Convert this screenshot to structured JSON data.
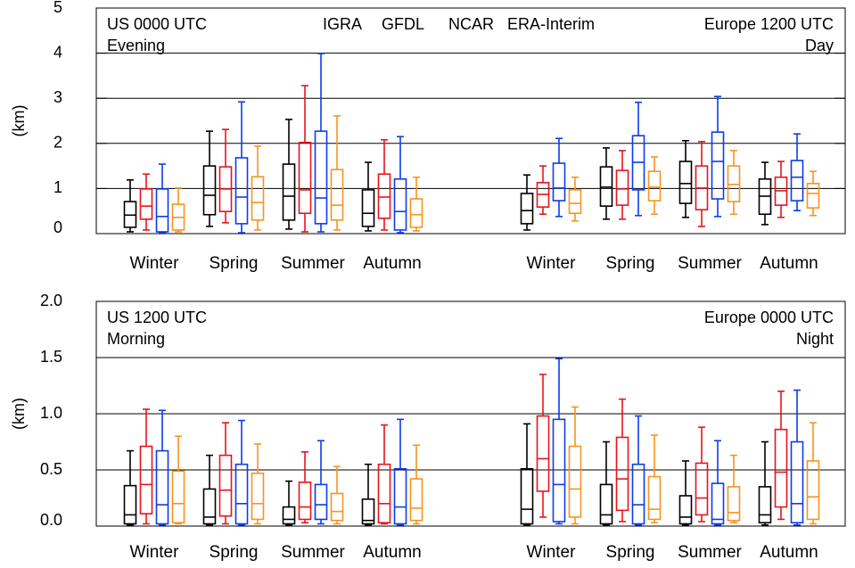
{
  "chart_data": [
    {
      "type": "box",
      "ylabel": "(km)",
      "ylim": [
        0,
        5
      ],
      "yticks": [
        0,
        1,
        2,
        3,
        4,
        5
      ],
      "grid": true,
      "annotations": [
        "US 0000 UTC",
        "Evening",
        "Europe 1200 UTC",
        "Day"
      ],
      "categories": [
        "Winter",
        "Spring",
        "Summer",
        "Autumn",
        "Winter",
        "Spring",
        "Summer",
        "Autumn"
      ],
      "series": [
        {
          "name": "IGRA",
          "color": "#000000",
          "values": [
            [
              0.04,
              0.14,
              0.41,
              0.71,
              1.19
            ],
            [
              0.16,
              0.42,
              0.85,
              1.5,
              2.27
            ],
            [
              0.1,
              0.3,
              0.83,
              1.54,
              2.53
            ],
            [
              0.06,
              0.16,
              0.45,
              0.97,
              1.58
            ],
            [
              0.08,
              0.22,
              0.51,
              0.89,
              1.3
            ],
            [
              0.32,
              0.61,
              1.03,
              1.48,
              1.9
            ],
            [
              0.36,
              0.67,
              1.11,
              1.6,
              2.06
            ],
            [
              0.2,
              0.43,
              0.83,
              1.21,
              1.58
            ]
          ]
        },
        {
          "name": "GFDL",
          "color": "#e8141c",
          "values": [
            [
              0.08,
              0.32,
              0.61,
              0.99,
              1.32
            ],
            [
              0.24,
              0.49,
              0.99,
              1.48,
              2.31
            ],
            [
              0.04,
              0.45,
              0.97,
              2.02,
              3.28
            ],
            [
              0.08,
              0.34,
              0.81,
              1.32,
              2.08
            ],
            [
              0.43,
              0.59,
              0.87,
              1.13,
              1.5
            ],
            [
              0.32,
              0.63,
              0.99,
              1.4,
              1.84
            ],
            [
              0.16,
              0.53,
              1.01,
              1.5,
              2.04
            ],
            [
              0.36,
              0.63,
              0.95,
              1.25,
              1.6
            ]
          ]
        },
        {
          "name": "NCAR",
          "color": "#0a3cf0",
          "values": [
            [
              0.02,
              0.04,
              0.38,
              0.99,
              1.54
            ],
            [
              0.02,
              0.22,
              0.81,
              1.68,
              2.92
            ],
            [
              0.04,
              0.22,
              0.79,
              2.27,
              3.99
            ],
            [
              0.02,
              0.08,
              0.49,
              1.21,
              2.15
            ],
            [
              0.38,
              0.73,
              1.01,
              1.56,
              2.11
            ],
            [
              0.4,
              0.97,
              1.58,
              2.17,
              2.91
            ],
            [
              0.38,
              0.77,
              1.6,
              2.25,
              3.04
            ],
            [
              0.51,
              0.73,
              1.25,
              1.62,
              2.21
            ]
          ]
        },
        {
          "name": "ERA-Interim",
          "color": "#f7941d",
          "values": [
            [
              0.04,
              0.08,
              0.36,
              0.65,
              1.01
            ],
            [
              0.08,
              0.3,
              0.69,
              1.26,
              1.94
            ],
            [
              0.08,
              0.3,
              0.63,
              1.42,
              2.61
            ],
            [
              0.06,
              0.14,
              0.42,
              0.77,
              1.25
            ],
            [
              0.28,
              0.45,
              0.67,
              0.97,
              1.25
            ],
            [
              0.43,
              0.73,
              1.03,
              1.38,
              1.7
            ],
            [
              0.43,
              0.71,
              1.09,
              1.5,
              1.84
            ],
            [
              0.4,
              0.57,
              0.89,
              1.11,
              1.38
            ]
          ]
        }
      ]
    },
    {
      "type": "box",
      "ylabel": "(km)",
      "ylim": [
        0,
        2
      ],
      "yticks": [
        {
          "value": 0,
          "label": "0.0"
        },
        {
          "value": 0.5,
          "label": "0.5"
        },
        {
          "value": 1,
          "label": "1.0"
        },
        {
          "value": 1.5,
          "label": "1.5"
        },
        {
          "value": 2,
          "label": "2.0"
        }
      ],
      "grid": true,
      "annotations": [
        "US 1200 UTC",
        "Morning",
        "Europe 0000 UTC",
        "Night"
      ],
      "categories": [
        "Winter",
        "Spring",
        "Summer",
        "Autumn",
        "Winter",
        "Spring",
        "Summer",
        "Autumn"
      ],
      "series": [
        {
          "color": "#000000",
          "values": [
            [
              0.01,
              0.02,
              0.1,
              0.36,
              0.67
            ],
            [
              0.01,
              0.02,
              0.08,
              0.33,
              0.63
            ],
            [
              0.01,
              0.02,
              0.06,
              0.17,
              0.4
            ],
            [
              0.01,
              0.02,
              0.05,
              0.24,
              0.55
            ],
            [
              0.01,
              0.02,
              0.15,
              0.51,
              0.91
            ],
            [
              0.01,
              0.02,
              0.1,
              0.37,
              0.75
            ],
            [
              0.01,
              0.02,
              0.08,
              0.27,
              0.58
            ],
            [
              0.01,
              0.03,
              0.1,
              0.35,
              0.75
            ]
          ]
        },
        {
          "color": "#e8141c",
          "values": [
            [
              0.02,
              0.11,
              0.37,
              0.71,
              1.04
            ],
            [
              0.02,
              0.09,
              0.32,
              0.63,
              0.92
            ],
            [
              0.03,
              0.06,
              0.17,
              0.39,
              0.66
            ],
            [
              0.02,
              0.03,
              0.2,
              0.55,
              0.9
            ],
            [
              0.08,
              0.31,
              0.6,
              0.98,
              1.35
            ],
            [
              0.04,
              0.14,
              0.42,
              0.79,
              1.13
            ],
            [
              0.04,
              0.1,
              0.25,
              0.56,
              0.88
            ],
            [
              0.06,
              0.17,
              0.48,
              0.86,
              1.2
            ]
          ]
        },
        {
          "color": "#0a3cf0",
          "values": [
            [
              0.01,
              0.02,
              0.19,
              0.67,
              1.03
            ],
            [
              0.01,
              0.02,
              0.2,
              0.55,
              0.94
            ],
            [
              0.02,
              0.06,
              0.19,
              0.37,
              0.76
            ],
            [
              0.01,
              0.02,
              0.17,
              0.51,
              0.95
            ],
            [
              0.02,
              0.04,
              0.37,
              0.95,
              1.49
            ],
            [
              0.01,
              0.02,
              0.19,
              0.55,
              0.98
            ],
            [
              0.01,
              0.02,
              0.06,
              0.38,
              0.76
            ],
            [
              0.01,
              0.03,
              0.2,
              0.75,
              1.21
            ]
          ]
        },
        {
          "color": "#f7941d",
          "values": [
            [
              0.02,
              0.03,
              0.2,
              0.49,
              0.8
            ],
            [
              0.02,
              0.06,
              0.2,
              0.47,
              0.73
            ],
            [
              0.02,
              0.05,
              0.13,
              0.29,
              0.53
            ],
            [
              0.02,
              0.05,
              0.16,
              0.42,
              0.72
            ],
            [
              0.02,
              0.08,
              0.33,
              0.71,
              1.06
            ],
            [
              0.03,
              0.06,
              0.15,
              0.44,
              0.81
            ],
            [
              0.03,
              0.05,
              0.12,
              0.35,
              0.63
            ],
            [
              0.02,
              0.06,
              0.26,
              0.58,
              0.92
            ]
          ]
        }
      ]
    }
  ]
}
